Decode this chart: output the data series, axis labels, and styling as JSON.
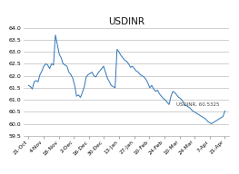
{
  "title": "USDINR",
  "label": "USDINR, 60.5325",
  "line_color": "#2e75b6",
  "background_color": "#ffffff",
  "grid_color": "#bebebe",
  "x_labels": [
    "21-Oct",
    "4-Nov",
    "18-Nov",
    "2-Dec",
    "16-Dec",
    "30-Dec",
    "13-Jan",
    "27-Jan",
    "10-Feb",
    "24-Feb",
    "10-Mar",
    "24-Mar",
    "7-Apr",
    "21-Apr"
  ],
  "ylim": [
    59.5,
    64.0
  ],
  "yticks": [
    59.5,
    60.0,
    60.5,
    61.0,
    61.5,
    62.0,
    62.5,
    63.0,
    63.5,
    64.0
  ],
  "values": [
    61.6,
    61.55,
    61.45,
    61.75,
    61.8,
    61.75,
    62.05,
    62.2,
    62.4,
    62.5,
    62.45,
    62.3,
    62.5,
    62.45,
    63.7,
    63.3,
    62.9,
    62.75,
    62.5,
    62.45,
    62.4,
    62.15,
    62.05,
    61.9,
    61.6,
    61.15,
    61.2,
    61.1,
    61.3,
    61.55,
    61.95,
    62.05,
    62.1,
    62.15,
    62.0,
    61.95,
    62.1,
    62.2,
    62.3,
    62.4,
    62.15,
    61.9,
    61.75,
    61.6,
    61.55,
    61.5,
    63.1,
    63.0,
    62.85,
    62.75,
    62.65,
    62.6,
    62.5,
    62.35,
    62.4,
    62.3,
    62.2,
    62.15,
    62.05,
    62.0,
    61.95,
    61.85,
    61.7,
    61.5,
    61.6,
    61.45,
    61.35,
    61.4,
    61.25,
    61.15,
    61.05,
    61.0,
    60.9,
    60.8,
    61.15,
    61.35,
    61.3,
    61.2,
    61.1,
    61.05,
    60.95,
    60.8,
    60.75,
    60.7,
    60.65,
    60.55,
    60.5,
    60.45,
    60.4,
    60.35,
    60.3,
    60.25,
    60.2,
    60.1,
    60.05,
    60.0,
    60.05,
    60.1,
    60.15,
    60.2,
    60.25,
    60.3,
    60.5325
  ],
  "figsize": [
    2.63,
    1.92
  ],
  "dpi": 100
}
